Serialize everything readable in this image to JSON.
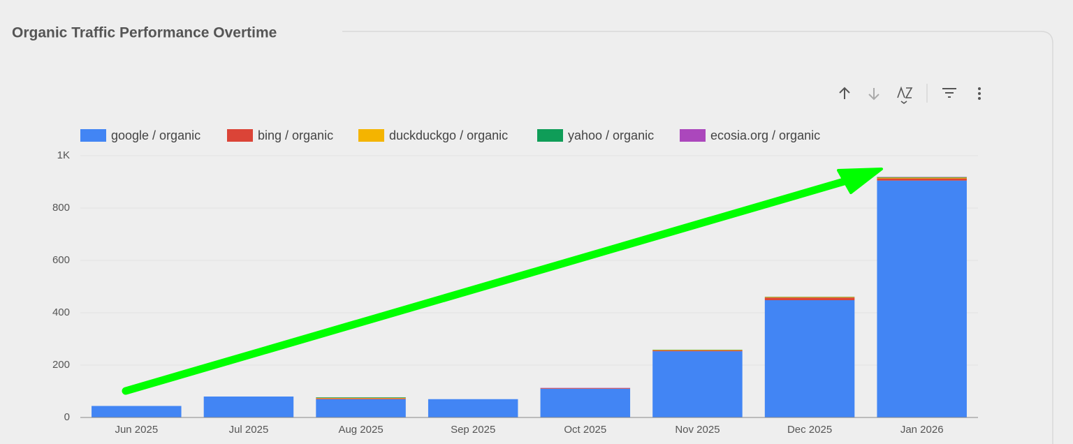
{
  "chart_data": {
    "type": "bar",
    "stacked": true,
    "title": "Organic Traffic Performance Overtime",
    "categories": [
      "Jun 2025",
      "Jul 2025",
      "Aug 2025",
      "Sep 2025",
      "Oct 2025",
      "Nov 2025",
      "Dec 2025",
      "Jan 2026"
    ],
    "series": [
      {
        "name": "google / organic",
        "color": "#4285f4",
        "values": [
          44,
          80,
          70,
          70,
          110,
          253,
          448,
          905
        ]
      },
      {
        "name": "bing / organic",
        "color": "#db4437",
        "values": [
          0,
          0,
          3,
          0,
          2,
          3,
          10,
          8
        ]
      },
      {
        "name": "duckduckgo / organic",
        "color": "#f4b400",
        "values": [
          0,
          0,
          2,
          0,
          0,
          2,
          2,
          3
        ]
      },
      {
        "name": "yahoo / organic",
        "color": "#0f9d58",
        "values": [
          0,
          0,
          2,
          0,
          0,
          1,
          1,
          2
        ]
      },
      {
        "name": "ecosia.org / organic",
        "color": "#ab47bc",
        "values": [
          0,
          0,
          0,
          0,
          1,
          0,
          0,
          1
        ]
      }
    ],
    "ylim": [
      0,
      1000
    ],
    "yticks": [
      0,
      200,
      400,
      600,
      800,
      {
        "value": 1000,
        "label": "1K"
      }
    ],
    "grid": true,
    "legend": "top"
  }
}
